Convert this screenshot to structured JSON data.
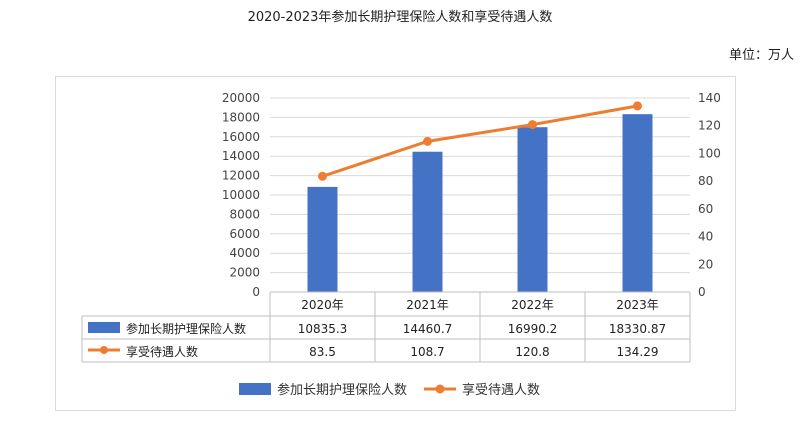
{
  "title": "2020-2023年参加长期护理保险人数和享受待遇人数",
  "unit": "单位：万人",
  "chart_data": {
    "type": "bar",
    "categories": [
      "2020年",
      "2021年",
      "2022年",
      "2023年"
    ],
    "series": [
      {
        "name": "参加长期护理保险人数",
        "type": "bar",
        "axis": "left",
        "values": [
          10835.3,
          14460.7,
          16990.2,
          18330.87
        ],
        "labels": [
          "10835.3",
          "14460.7",
          "16990.2",
          "18330.87"
        ],
        "color": "#4472C4"
      },
      {
        "name": "享受待遇人数",
        "type": "line",
        "axis": "right",
        "values": [
          83.5,
          108.7,
          120.8,
          134.29
        ],
        "labels": [
          "83.5",
          "108.7",
          "120.8",
          "134.29"
        ],
        "color": "#ED7D31"
      }
    ],
    "y_left": {
      "min": 0,
      "max": 20000,
      "step": 2000,
      "ticks": [
        "0",
        "2000",
        "4000",
        "6000",
        "8000",
        "10000",
        "12000",
        "14000",
        "16000",
        "18000",
        "20000"
      ]
    },
    "y_right": {
      "min": 0,
      "max": 140,
      "step": 20,
      "ticks": [
        "0",
        "20",
        "40",
        "60",
        "80",
        "100",
        "120",
        "140"
      ]
    },
    "grid": true,
    "data_table": true,
    "legend": "bottom"
  }
}
